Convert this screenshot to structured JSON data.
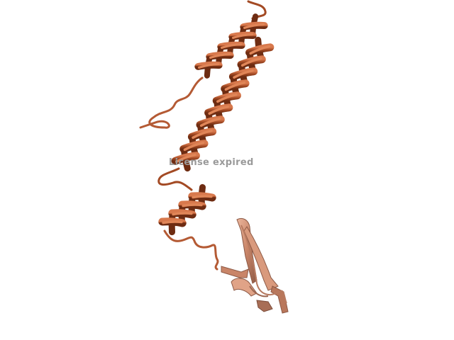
{
  "watermark": {
    "text": "License expired"
  },
  "colors": {
    "background": "#ffffff",
    "helix_light": "#c8643a",
    "helix_mid": "#a34a24",
    "helix_dark": "#6e2c12",
    "sheet_light": "#e3a88e",
    "sheet_mid": "#c98568",
    "sheet_dark": "#8d5a46"
  }
}
